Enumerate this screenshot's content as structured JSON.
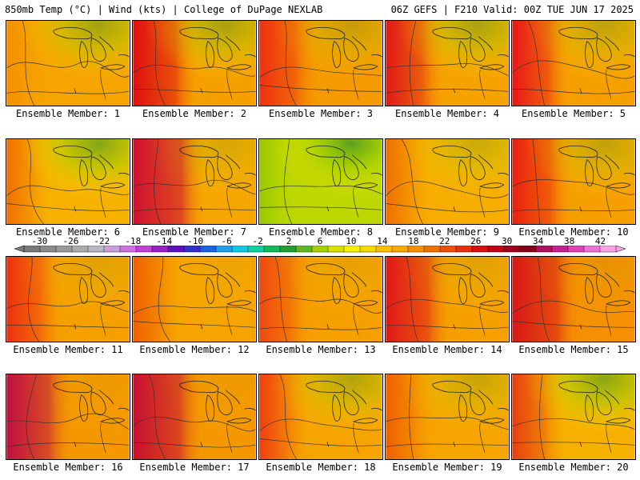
{
  "header": {
    "left": "850mb Temp (°C) | Wind (kts) | College of DuPage NEXLAB",
    "right": "06Z GEFS | F210 Valid: 00Z TUE JUN 17 2025"
  },
  "panels": [
    {
      "label": "Ensemble Member: 1",
      "base": "#f6a400",
      "west": "#f59000",
      "green": 0.55,
      "red": 0.05
    },
    {
      "label": "Ensemble Member: 2",
      "base": "#f6a000",
      "west": "#e01010",
      "green": 0.5,
      "red": 0.55
    },
    {
      "label": "Ensemble Member: 3",
      "base": "#f59a00",
      "west": "#ee3010",
      "green": 0.3,
      "red": 0.4
    },
    {
      "label": "Ensemble Member: 4",
      "base": "#f6a200",
      "west": "#e01818",
      "green": 0.5,
      "red": 0.4
    },
    {
      "label": "Ensemble Member: 5",
      "base": "#f6a000",
      "west": "#e81818",
      "green": 0.35,
      "red": 0.4
    },
    {
      "label": "Ensemble Member: 6",
      "base": "#f7b200",
      "west": "#f07000",
      "green": 0.75,
      "red": 0.15
    },
    {
      "label": "Ensemble Member: 7",
      "base": "#f6a600",
      "west": "#d01030",
      "green": 0.2,
      "red": 0.7
    },
    {
      "label": "Ensemble Member: 8",
      "base": "#bcd800",
      "west": "#9cc800",
      "green": 1.0,
      "red": 0.0
    },
    {
      "label": "Ensemble Member: 9",
      "base": "#f7ae00",
      "west": "#f07000",
      "green": 0.3,
      "red": 0.15
    },
    {
      "label": "Ensemble Member: 10",
      "base": "#f6a000",
      "west": "#ea2010",
      "green": 0.35,
      "red": 0.45
    },
    {
      "label": "Ensemble Member: 11",
      "base": "#f6a000",
      "west": "#ee3010",
      "green": 0.15,
      "red": 0.35
    },
    {
      "label": "Ensemble Member: 12",
      "base": "#f6a400",
      "west": "#f06000",
      "green": 0.05,
      "red": 0.2
    },
    {
      "label": "Ensemble Member: 13",
      "base": "#f6a000",
      "west": "#ee4810",
      "green": 0.1,
      "red": 0.3
    },
    {
      "label": "Ensemble Member: 14",
      "base": "#f6a000",
      "west": "#e01818",
      "green": 0.15,
      "red": 0.55
    },
    {
      "label": "Ensemble Member: 15",
      "base": "#f59000",
      "west": "#d81818",
      "green": 0.1,
      "red": 0.6
    },
    {
      "label": "Ensemble Member: 16",
      "base": "#f59800",
      "west": "#c01040",
      "green": 0.05,
      "red": 0.55
    },
    {
      "label": "Ensemble Member: 17",
      "base": "#f59800",
      "west": "#c81030",
      "green": 0.05,
      "red": 0.65
    },
    {
      "label": "Ensemble Member: 18",
      "base": "#f6a400",
      "west": "#ee4010",
      "green": 0.45,
      "red": 0.2
    },
    {
      "label": "Ensemble Member: 19",
      "base": "#f6a400",
      "west": "#f06000",
      "green": 0.3,
      "red": 0.2
    },
    {
      "label": "Ensemble Member: 20",
      "base": "#f6b000",
      "west": "#e84010",
      "green": 0.7,
      "red": 0.3
    }
  ],
  "colorbar": {
    "tick_labels": [
      "-30",
      "-26",
      "-22",
      "-18",
      "-14",
      "-10",
      "-6",
      "-2",
      "2",
      "6",
      "10",
      "14",
      "18",
      "22",
      "26",
      "30",
      "34",
      "38",
      "42"
    ],
    "colors": [
      "#7a7a7a",
      "#8a8a8a",
      "#9a9a9a",
      "#aaaaaa",
      "#b7b7c4",
      "#c8a0d8",
      "#d070e0",
      "#c040d8",
      "#9a20c8",
      "#6010c0",
      "#3030d0",
      "#2060e8",
      "#20a0f0",
      "#10c8e0",
      "#10d0a0",
      "#10b860",
      "#20a030",
      "#60b820",
      "#a8d000",
      "#d8e000",
      "#f8f000",
      "#f8d800",
      "#f8c000",
      "#f8a800",
      "#f89000",
      "#f07000",
      "#ec5000",
      "#e83010",
      "#d81010",
      "#c00018",
      "#a00020",
      "#880018",
      "#b01060",
      "#c82090",
      "#e040b8",
      "#f070d8",
      "#f8a0e8"
    ]
  }
}
